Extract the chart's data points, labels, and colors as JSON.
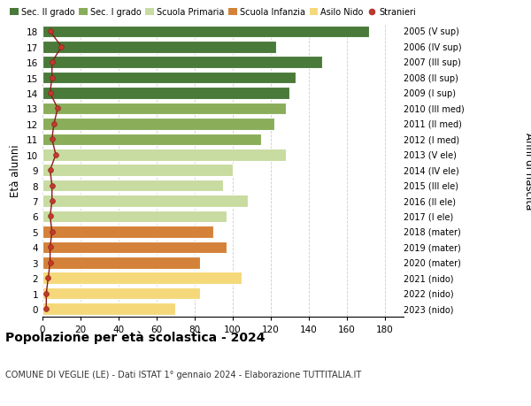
{
  "ages": [
    0,
    1,
    2,
    3,
    4,
    5,
    6,
    7,
    8,
    9,
    10,
    11,
    12,
    13,
    14,
    15,
    16,
    17,
    18
  ],
  "labels_right": [
    "2023 (nido)",
    "2022 (nido)",
    "2021 (nido)",
    "2020 (mater)",
    "2019 (mater)",
    "2018 (mater)",
    "2017 (I ele)",
    "2016 (II ele)",
    "2015 (III ele)",
    "2014 (IV ele)",
    "2013 (V ele)",
    "2012 (I med)",
    "2011 (II med)",
    "2010 (III med)",
    "2009 (I sup)",
    "2008 (II sup)",
    "2007 (III sup)",
    "2006 (IV sup)",
    "2005 (V sup)"
  ],
  "bar_values": [
    70,
    83,
    105,
    83,
    97,
    90,
    97,
    108,
    95,
    100,
    128,
    115,
    122,
    128,
    130,
    133,
    147,
    123,
    172
  ],
  "bar_colors": [
    "#f5d87a",
    "#f5d87a",
    "#f5d87a",
    "#d4823a",
    "#d4823a",
    "#d4823a",
    "#c8dba0",
    "#c8dba0",
    "#c8dba0",
    "#c8dba0",
    "#c8dba0",
    "#8aad5a",
    "#8aad5a",
    "#8aad5a",
    "#4a7a3a",
    "#4a7a3a",
    "#4a7a3a",
    "#4a7a3a",
    "#4a7a3a"
  ],
  "stranieri_values": [
    2,
    2,
    3,
    4,
    4,
    5,
    4,
    5,
    5,
    4,
    7,
    5,
    6,
    8,
    4,
    5,
    5,
    10,
    4
  ],
  "ylabel": "Età alunni",
  "ylabel_right": "Anni di nascita",
  "title": "Popolazione per età scolastica - 2024",
  "subtitle": "COMUNE DI VEGLIE (LE) - Dati ISTAT 1° gennaio 2024 - Elaborazione TUTTITALIA.IT",
  "xlim": [
    0,
    190
  ],
  "xticks": [
    0,
    20,
    40,
    60,
    80,
    100,
    120,
    140,
    160,
    180
  ],
  "legend_labels": [
    "Sec. II grado",
    "Sec. I grado",
    "Scuola Primaria",
    "Scuola Infanzia",
    "Asilo Nido",
    "Stranieri"
  ],
  "legend_colors": [
    "#4a7a3a",
    "#8aad5a",
    "#c8dba0",
    "#d4823a",
    "#f5d87a",
    "#c0392b"
  ],
  "background_color": "#ffffff",
  "grid_color": "#cccccc"
}
